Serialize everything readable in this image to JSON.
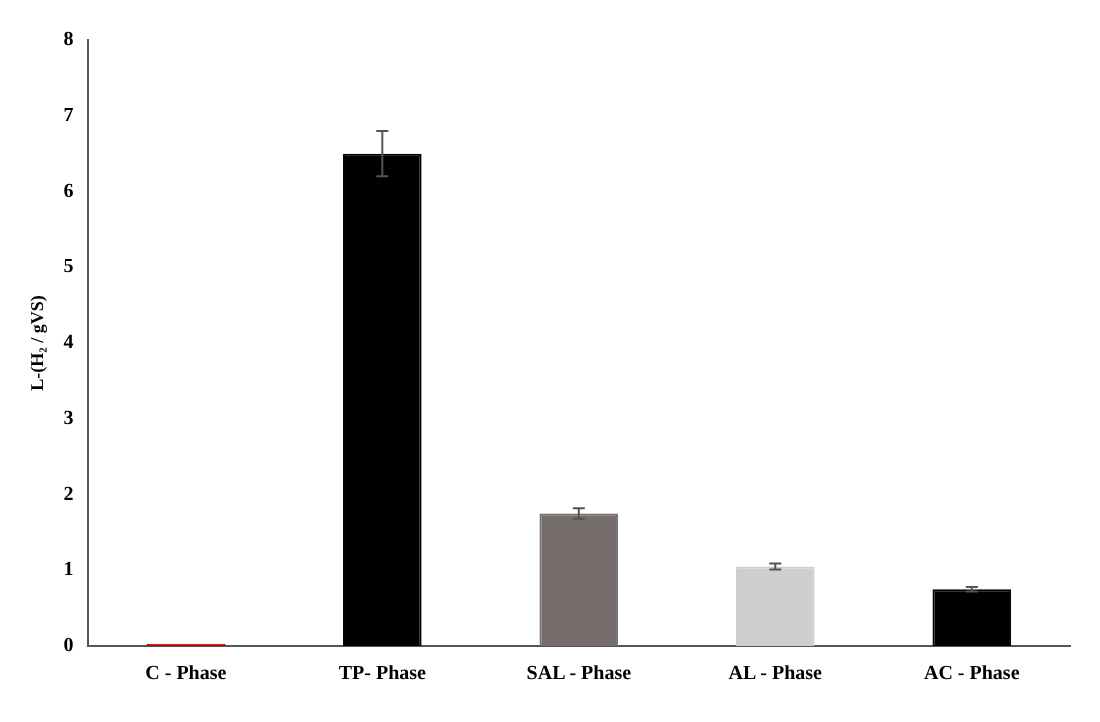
{
  "chart_data": {
    "type": "bar",
    "ylabel": "L-(H₂ / gVS)",
    "categories": [
      "C - Phase",
      "TP- Phase",
      "SAL - Phase",
      "AL - Phase",
      "AC - Phase"
    ],
    "values": [
      0.03,
      6.5,
      1.75,
      1.05,
      0.75
    ],
    "errors": [
      null,
      0.3,
      0.07,
      0.04,
      0.03
    ],
    "colors": [
      "#c00000",
      "#000000",
      "#756d6b",
      "#d0cdcd",
      "#000000"
    ],
    "ylim": [
      0,
      8
    ],
    "yticks": [
      0,
      1,
      2,
      3,
      4,
      5,
      6,
      7,
      8
    ],
    "grid": false,
    "legend": false
  }
}
